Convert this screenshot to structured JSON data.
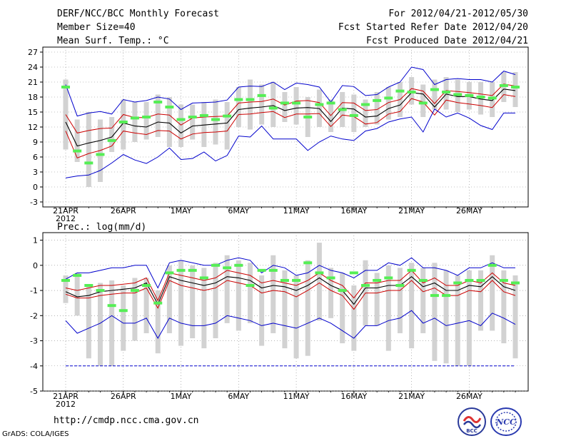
{
  "header": {
    "title": "DERF/NCC/BCC Monthly Forecast",
    "member_size": "Member Size=40",
    "variable": "Mean Surf. Temp.: °C",
    "forecast_range": "For 2012/04/21-2012/05/30",
    "started_refer": "Fcst Started Refer Date 2012/04/20",
    "produced": "Fcst Produced Date 2012/04/21"
  },
  "footer": {
    "url": "http://cmdp.ncc.cma.gov.cn",
    "credit": "GrADS: COLA/IGES",
    "logo_left_text": "BCC",
    "logo_right_text": "NCC"
  },
  "colors": {
    "min_max": "#0000cc",
    "spread": "#cc0000",
    "mean": "#000000",
    "obs": "#55ee55",
    "box": "#d2d2d2"
  },
  "chart_data": [
    {
      "type": "line",
      "title": "",
      "ylabel": "Mean Surf. Temp.: °C",
      "ylim": [
        -4,
        28
      ],
      "yticks": [
        -3,
        0,
        3,
        6,
        9,
        12,
        15,
        18,
        21,
        24,
        27
      ],
      "xticks": [
        {
          "day": 0,
          "label": "21APR",
          "sub": "2012"
        },
        {
          "day": 5,
          "label": "26APR"
        },
        {
          "day": 10,
          "label": "1MAY"
        },
        {
          "day": 15,
          "label": "6MAY"
        },
        {
          "day": 20,
          "label": "11MAY"
        },
        {
          "day": 25,
          "label": "16MAY"
        },
        {
          "day": 30,
          "label": "21MAY"
        },
        {
          "day": 35,
          "label": "26MAY"
        }
      ],
      "days": [
        0,
        1,
        2,
        3,
        4,
        5,
        6,
        7,
        8,
        9,
        10,
        11,
        12,
        13,
        14,
        15,
        16,
        17,
        18,
        19,
        20,
        21,
        22,
        23,
        24,
        25,
        26,
        27,
        28,
        29,
        30,
        31,
        32,
        33,
        34,
        35,
        36,
        37,
        38,
        39
      ],
      "series": [
        {
          "name": "max",
          "values": [
            20.5,
            14.2,
            14.8,
            15.1,
            14.6,
            17.5,
            17.0,
            17.3,
            18.0,
            17.6,
            15.5,
            16.8,
            16.9,
            17.0,
            17.4,
            20.0,
            20.2,
            20.1,
            21.0,
            19.5,
            20.8,
            20.5,
            20.0,
            17.0,
            20.3,
            20.1,
            18.3,
            18.5,
            20.0,
            21.0,
            24.0,
            23.5,
            20.5,
            21.5,
            21.7,
            21.5,
            21.5,
            21.0,
            23.2,
            22.5
          ]
        },
        {
          "name": "upper",
          "values": [
            14.5,
            10.8,
            11.3,
            11.7,
            11.8,
            14.5,
            13.9,
            13.9,
            14.6,
            14.4,
            12.4,
            13.8,
            14.0,
            14.1,
            14.2,
            16.8,
            17.0,
            17.1,
            17.6,
            16.4,
            17.2,
            17.3,
            16.9,
            14.3,
            16.9,
            16.8,
            15.3,
            15.5,
            16.9,
            17.5,
            19.7,
            19.2,
            16.7,
            19.3,
            19.1,
            18.9,
            18.6,
            18.3,
            20.6,
            20.2
          ]
        },
        {
          "name": "mean",
          "values": [
            13.0,
            8.2,
            8.8,
            9.3,
            10.0,
            12.8,
            12.2,
            12.0,
            13.0,
            12.8,
            10.8,
            12.2,
            12.4,
            12.6,
            12.8,
            15.5,
            15.8,
            16.0,
            16.3,
            15.3,
            15.8,
            15.9,
            15.7,
            13.1,
            15.8,
            15.6,
            14.0,
            14.2,
            15.7,
            16.4,
            18.9,
            18.6,
            16.0,
            18.6,
            18.1,
            18.1,
            17.6,
            17.3,
            19.6,
            19.3
          ]
        },
        {
          "name": "lower",
          "values": [
            11.2,
            5.8,
            6.7,
            7.3,
            8.2,
            11.2,
            10.8,
            10.5,
            11.3,
            11.2,
            9.6,
            10.6,
            10.9,
            11.0,
            11.2,
            14.5,
            14.6,
            14.9,
            15.1,
            13.9,
            14.6,
            14.6,
            14.7,
            12.1,
            14.4,
            14.1,
            12.6,
            12.9,
            14.6,
            15.1,
            17.7,
            17.0,
            14.4,
            17.4,
            16.9,
            16.6,
            16.3,
            15.9,
            18.5,
            18.1
          ]
        },
        {
          "name": "min",
          "values": [
            1.8,
            2.2,
            2.4,
            3.3,
            4.8,
            6.5,
            5.4,
            4.7,
            6.0,
            7.8,
            5.5,
            5.7,
            7.0,
            5.2,
            6.3,
            10.2,
            10.0,
            12.2,
            9.6,
            9.6,
            9.6,
            7.3,
            9.0,
            10.2,
            9.6,
            9.3,
            11.2,
            11.7,
            13.0,
            13.6,
            14.0,
            11.0,
            15.6,
            14.0,
            14.8,
            13.8,
            12.3,
            11.5,
            14.8,
            14.8
          ]
        }
      ],
      "boxes": [
        {
          "lo": 7.5,
          "hi": 21.5
        },
        {
          "lo": 5.0,
          "hi": 13.5
        },
        {
          "lo": 0.0,
          "hi": 15.0
        },
        {
          "lo": 1.0,
          "hi": 13.5
        },
        {
          "lo": 7.0,
          "hi": 14.0
        },
        {
          "lo": 7.5,
          "hi": 17.5
        },
        {
          "lo": 9.0,
          "hi": 17.0
        },
        {
          "lo": 9.5,
          "hi": 17.0
        },
        {
          "lo": 10.0,
          "hi": 18.5
        },
        {
          "lo": 8.0,
          "hi": 18.0
        },
        {
          "lo": 8.0,
          "hi": 16.5
        },
        {
          "lo": 9.5,
          "hi": 16.5
        },
        {
          "lo": 8.0,
          "hi": 17.0
        },
        {
          "lo": 8.5,
          "hi": 17.5
        },
        {
          "lo": 7.5,
          "hi": 17.0
        },
        {
          "lo": 12.0,
          "hi": 20.0
        },
        {
          "lo": 11.5,
          "hi": 21.5
        },
        {
          "lo": 12.5,
          "hi": 20.5
        },
        {
          "lo": 12.0,
          "hi": 21.0
        },
        {
          "lo": 13.0,
          "hi": 19.0
        },
        {
          "lo": 12.5,
          "hi": 20.0
        },
        {
          "lo": 10.0,
          "hi": 18.0
        },
        {
          "lo": 12.0,
          "hi": 19.5
        },
        {
          "lo": 11.0,
          "hi": 17.5
        },
        {
          "lo": 12.0,
          "hi": 19.0
        },
        {
          "lo": 11.0,
          "hi": 18.5
        },
        {
          "lo": 12.0,
          "hi": 17.5
        },
        {
          "lo": 12.5,
          "hi": 19.0
        },
        {
          "lo": 13.5,
          "hi": 20.0
        },
        {
          "lo": 14.0,
          "hi": 21.0
        },
        {
          "lo": 16.5,
          "hi": 22.0
        },
        {
          "lo": 14.0,
          "hi": 20.5
        },
        {
          "lo": 15.5,
          "hi": 21.5
        },
        {
          "lo": 15.5,
          "hi": 22.0
        },
        {
          "lo": 15.0,
          "hi": 21.5
        },
        {
          "lo": 15.5,
          "hi": 21.0
        },
        {
          "lo": 14.5,
          "hi": 21.0
        },
        {
          "lo": 14.0,
          "hi": 21.0
        },
        {
          "lo": 17.0,
          "hi": 23.0
        },
        {
          "lo": 16.0,
          "hi": 23.0
        }
      ],
      "observed": [
        20.0,
        7.2,
        4.8,
        6.5,
        9.3,
        13.0,
        13.8,
        14.0,
        17.0,
        16.0,
        13.5,
        14.0,
        14.3,
        13.5,
        14.2,
        17.5,
        17.5,
        18.3,
        15.8,
        16.8,
        16.8,
        14.0,
        16.5,
        16.8,
        15.5,
        14.3,
        16.5,
        17.3,
        17.8,
        19.2,
        19.0,
        16.8,
        19.5,
        19.0,
        18.5,
        18.3,
        18.0,
        17.8,
        20.3,
        20.0
      ]
    },
    {
      "type": "line",
      "title": "",
      "ylabel": "Prec.: log(mm/d)",
      "ylim": [
        -5,
        1.3
      ],
      "yticks": [
        -5,
        -4,
        -3,
        -2,
        -1,
        0,
        1
      ],
      "xticks": [
        {
          "day": 0,
          "label": "21APR",
          "sub": "2012"
        },
        {
          "day": 5,
          "label": "26APR"
        },
        {
          "day": 10,
          "label": "1MAY"
        },
        {
          "day": 15,
          "label": "6MAY"
        },
        {
          "day": 20,
          "label": "11MAY"
        },
        {
          "day": 25,
          "label": "16MAY"
        },
        {
          "day": 30,
          "label": "21MAY"
        },
        {
          "day": 35,
          "label": "26MAY"
        }
      ],
      "days": [
        0,
        1,
        2,
        3,
        4,
        5,
        6,
        7,
        8,
        9,
        10,
        11,
        12,
        13,
        14,
        15,
        16,
        17,
        18,
        19,
        20,
        21,
        22,
        23,
        24,
        25,
        26,
        27,
        28,
        29,
        30,
        31,
        32,
        33,
        34,
        35,
        36,
        37,
        38,
        39
      ],
      "series": [
        {
          "name": "max",
          "values": [
            -0.55,
            -0.3,
            -0.3,
            -0.2,
            -0.1,
            -0.1,
            0.0,
            0.0,
            -0.9,
            0.1,
            0.2,
            0.1,
            0.0,
            0.0,
            0.2,
            0.3,
            0.2,
            -0.3,
            0.0,
            -0.1,
            -0.4,
            -0.3,
            0.0,
            -0.2,
            -0.3,
            -0.5,
            -0.2,
            -0.2,
            0.1,
            0.0,
            0.3,
            -0.1,
            -0.1,
            -0.2,
            -0.4,
            -0.1,
            -0.1,
            0.1,
            -0.1,
            -0.1
          ]
        },
        {
          "name": "upper",
          "values": [
            -0.9,
            -1.0,
            -0.9,
            -0.8,
            -0.8,
            -0.75,
            -0.7,
            -0.5,
            -1.4,
            -0.3,
            -0.4,
            -0.5,
            -0.6,
            -0.5,
            -0.2,
            -0.3,
            -0.4,
            -0.7,
            -0.6,
            -0.7,
            -0.8,
            -0.6,
            -0.3,
            -0.6,
            -0.8,
            -1.3,
            -0.7,
            -0.7,
            -0.6,
            -0.6,
            -0.2,
            -0.7,
            -0.5,
            -0.8,
            -0.8,
            -0.6,
            -0.7,
            -0.3,
            -0.7,
            -0.8
          ]
        },
        {
          "name": "mean",
          "values": [
            -1.05,
            -1.25,
            -1.2,
            -1.05,
            -1.0,
            -0.95,
            -0.9,
            -0.7,
            -1.55,
            -0.45,
            -0.6,
            -0.7,
            -0.8,
            -0.7,
            -0.45,
            -0.5,
            -0.6,
            -0.9,
            -0.8,
            -0.85,
            -1.0,
            -0.8,
            -0.5,
            -0.8,
            -1.0,
            -1.55,
            -0.9,
            -0.9,
            -0.8,
            -0.8,
            -0.45,
            -0.85,
            -0.7,
            -1.0,
            -1.0,
            -0.8,
            -0.85,
            -0.45,
            -0.85,
            -1.0
          ]
        },
        {
          "name": "lower",
          "values": [
            -1.15,
            -1.3,
            -1.3,
            -1.2,
            -1.15,
            -1.1,
            -1.1,
            -0.9,
            -1.7,
            -0.6,
            -0.8,
            -0.9,
            -1.0,
            -0.9,
            -0.6,
            -0.7,
            -0.8,
            -1.1,
            -1.0,
            -1.05,
            -1.25,
            -1.0,
            -0.7,
            -1.0,
            -1.2,
            -1.75,
            -1.1,
            -1.1,
            -1.0,
            -1.0,
            -0.6,
            -1.05,
            -0.9,
            -1.2,
            -1.2,
            -1.0,
            -1.05,
            -0.6,
            -1.05,
            -1.2
          ]
        },
        {
          "name": "min",
          "values": [
            -2.2,
            -2.7,
            -2.5,
            -2.3,
            -2.0,
            -2.3,
            -2.3,
            -2.1,
            -2.9,
            -2.1,
            -2.3,
            -2.4,
            -2.4,
            -2.3,
            -2.0,
            -2.1,
            -2.2,
            -2.4,
            -2.3,
            -2.4,
            -2.5,
            -2.3,
            -2.1,
            -2.3,
            -2.6,
            -2.9,
            -2.4,
            -2.4,
            -2.2,
            -2.1,
            -1.8,
            -2.3,
            -2.1,
            -2.4,
            -2.3,
            -2.2,
            -2.4,
            -1.9,
            -2.1,
            -2.35
          ]
        },
        {
          "name": "floor",
          "values": [
            -4,
            -4,
            -4,
            -4,
            -4,
            -4,
            -4,
            -4,
            -4,
            -4,
            -4,
            -4,
            -4,
            -4,
            -4,
            -4,
            -4,
            -4,
            -4,
            -4,
            -4,
            -4,
            -4,
            -4,
            -4,
            -4,
            -4,
            -4,
            -4,
            -4,
            -4,
            -4,
            -4,
            -4,
            -4,
            -4,
            -4,
            -4,
            -4,
            -4
          ]
        }
      ],
      "boxes": [
        {
          "lo": -1.5,
          "hi": -0.4
        },
        {
          "lo": -2.0,
          "hi": -0.3
        },
        {
          "lo": -3.7,
          "hi": -0.8
        },
        {
          "lo": -4.0,
          "hi": -0.7
        },
        {
          "lo": -4.0,
          "hi": -0.6
        },
        {
          "lo": -3.4,
          "hi": -0.8
        },
        {
          "lo": -3.0,
          "hi": -0.5
        },
        {
          "lo": -2.7,
          "hi": -0.5
        },
        {
          "lo": -3.5,
          "hi": -1.0
        },
        {
          "lo": -2.7,
          "hi": 0.0
        },
        {
          "lo": -3.2,
          "hi": 0.2
        },
        {
          "lo": -2.9,
          "hi": 0.0
        },
        {
          "lo": -3.3,
          "hi": -0.1
        },
        {
          "lo": -2.9,
          "hi": 0.1
        },
        {
          "lo": -2.3,
          "hi": 0.4
        },
        {
          "lo": -2.6,
          "hi": 0.2
        },
        {
          "lo": -2.3,
          "hi": 0.1
        },
        {
          "lo": -3.2,
          "hi": -0.4
        },
        {
          "lo": -2.7,
          "hi": 0.4
        },
        {
          "lo": -3.3,
          "hi": -0.2
        },
        {
          "lo": -3.7,
          "hi": -0.4
        },
        {
          "lo": -3.6,
          "hi": 0.2
        },
        {
          "lo": -2.2,
          "hi": 0.9
        },
        {
          "lo": -2.1,
          "hi": -0.1
        },
        {
          "lo": -3.1,
          "hi": -0.3
        },
        {
          "lo": -3.4,
          "hi": -0.8
        },
        {
          "lo": -2.4,
          "hi": 0.2
        },
        {
          "lo": -2.4,
          "hi": -0.3
        },
        {
          "lo": -3.4,
          "hi": 0.0
        },
        {
          "lo": -2.7,
          "hi": -0.1
        },
        {
          "lo": -3.3,
          "hi": 0.1
        },
        {
          "lo": -2.7,
          "hi": -0.1
        },
        {
          "lo": -3.8,
          "hi": 0.1
        },
        {
          "lo": -3.9,
          "hi": -0.2
        },
        {
          "lo": -4.0,
          "hi": -0.4
        },
        {
          "lo": -4.0,
          "hi": -0.2
        },
        {
          "lo": -2.6,
          "hi": -0.2
        },
        {
          "lo": -2.6,
          "hi": 0.4
        },
        {
          "lo": -3.1,
          "hi": -0.2
        },
        {
          "lo": -3.7,
          "hi": -0.4
        }
      ],
      "observed": [
        -0.6,
        -0.4,
        -0.8,
        -1.0,
        -1.6,
        -1.8,
        -1.0,
        -0.8,
        -1.5,
        -0.3,
        -0.2,
        -0.2,
        -0.5,
        0.0,
        -0.1,
        0.0,
        -0.8,
        -0.2,
        -0.2,
        -0.6,
        -0.6,
        0.1,
        -0.3,
        -0.5,
        -1.0,
        -0.3,
        -0.8,
        -0.6,
        -0.5,
        -0.8,
        -0.2,
        -0.6,
        -1.2,
        -1.2,
        -0.7,
        -0.6,
        -0.6,
        0.0,
        -0.6,
        -0.7
      ]
    }
  ]
}
